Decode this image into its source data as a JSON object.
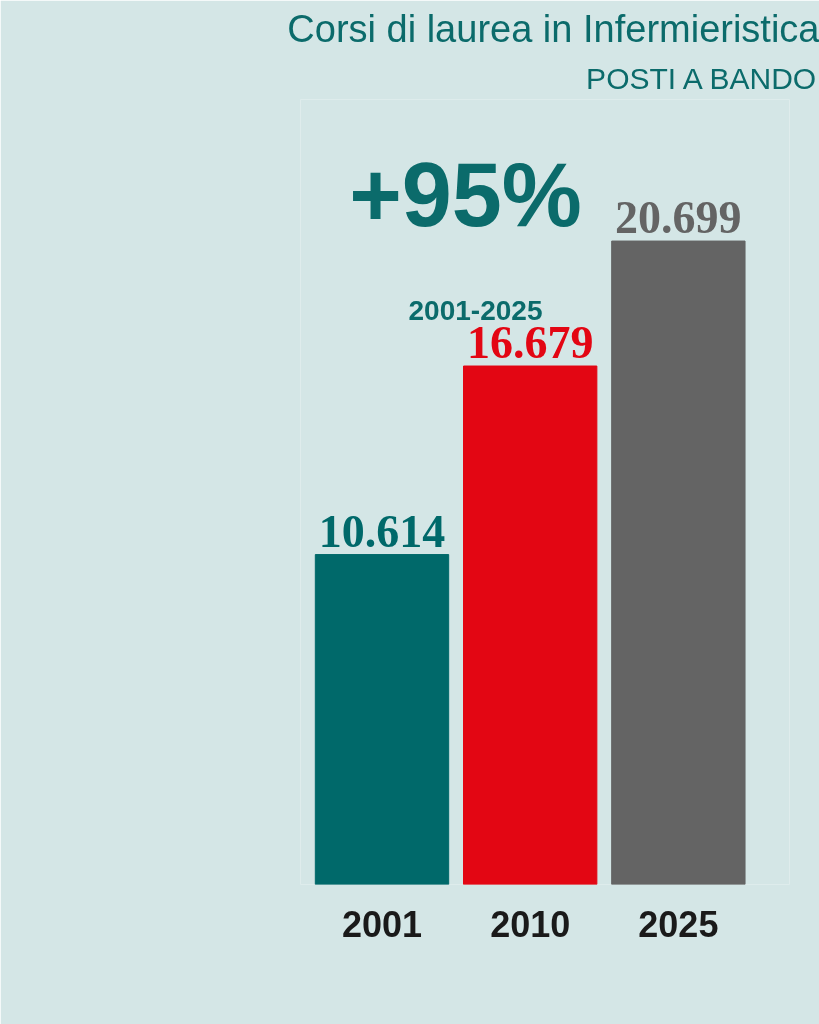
{
  "chart_data": {
    "type": "bar",
    "title": "Corsi di laurea in Infermieristica",
    "subtitle": "POSTI A BANDO",
    "categories": [
      "2001",
      "2010",
      "2025"
    ],
    "values": [
      10614,
      16679,
      20699
    ],
    "colors": [
      "#00696a",
      "#e30613",
      "#646464"
    ],
    "value_labels": [
      "10.614",
      "16.679",
      "20.699"
    ],
    "annotations": [
      "+95%",
      "2001-2025"
    ]
  }
}
